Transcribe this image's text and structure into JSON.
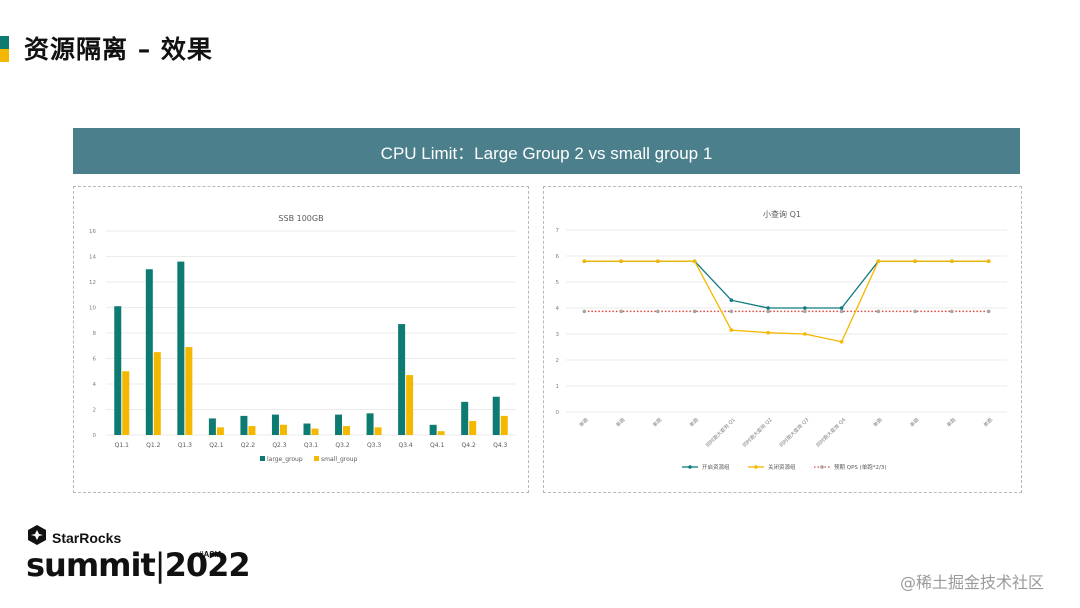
{
  "slide": {
    "title": "资源隔离 – 效果",
    "banner": "CPU Limit：Large Group 2 vs small group 1",
    "brand": "StarRocks",
    "summit_text": "summit",
    "year": "2022",
    "tag": "#ASIA",
    "watermark": "@稀土掘金技术社区",
    "colors": {
      "accent_green": "#0e7b72",
      "accent_yellow": "#f5b800",
      "banner_bg": "#4b7f8c"
    }
  },
  "chart_data": [
    {
      "type": "bar",
      "title": "SSB 100GB",
      "categories": [
        "Q1.1",
        "Q1.2",
        "Q1.3",
        "Q2.1",
        "Q2.2",
        "Q2.3",
        "Q3.1",
        "Q3.2",
        "Q3.3",
        "Q3.4",
        "Q4.1",
        "Q4.2",
        "Q4.3"
      ],
      "series": [
        {
          "name": "large_group",
          "color": "#0e7b72",
          "values": [
            10.1,
            13.0,
            13.6,
            1.3,
            1.5,
            1.6,
            0.9,
            1.6,
            1.7,
            8.7,
            0.8,
            2.6,
            3.0
          ]
        },
        {
          "name": "small_group",
          "color": "#f5b800",
          "values": [
            5.0,
            6.5,
            6.9,
            0.6,
            0.7,
            0.8,
            0.5,
            0.7,
            0.6,
            4.7,
            0.3,
            1.1,
            1.5
          ]
        }
      ],
      "ylim": [
        0,
        16
      ],
      "yticks": [
        0,
        2,
        4,
        6,
        8,
        10,
        12,
        14,
        16
      ],
      "ytick_labels": [
        "0",
        "2",
        "4",
        "6",
        "8",
        "10",
        "12",
        "14",
        "16"
      ],
      "grid": true,
      "legend": "bottom"
    },
    {
      "type": "line",
      "title": "小查询 Q1",
      "categories": [
        "单跑",
        "单跑",
        "单跑",
        "单跑",
        "同时跑大查询 Q1",
        "同时跑大查询 Q2",
        "同时跑大查询 Q3",
        "同时跑大查询 Q4",
        "单跑",
        "单跑",
        "单跑",
        "单跑"
      ],
      "series": [
        {
          "name": "开启资源组",
          "color": "#117a80",
          "dash": "solid",
          "values": [
            5.8,
            5.8,
            5.8,
            5.8,
            4.3,
            4.0,
            4.0,
            4.0,
            5.8,
            5.8,
            5.8,
            5.8
          ]
        },
        {
          "name": "关闭资源组",
          "color": "#f5b800",
          "dash": "solid",
          "values": [
            5.8,
            5.8,
            5.8,
            5.8,
            3.15,
            3.05,
            3.0,
            2.7,
            5.8,
            5.8,
            5.8,
            5.8
          ]
        },
        {
          "name": "预期 QPS (单跑*2/3)",
          "color": "#e0453a",
          "dash": "dotted",
          "values": [
            3.87,
            3.87,
            3.87,
            3.87,
            3.87,
            3.87,
            3.87,
            3.87,
            3.87,
            3.87,
            3.87,
            3.87
          ]
        }
      ],
      "ylim": [
        0,
        7
      ],
      "yticks": [
        0,
        1,
        2,
        3,
        4,
        5,
        6,
        7
      ],
      "ytick_labels": [
        "0",
        "1",
        "2",
        "3",
        "4",
        "5",
        "6",
        "7"
      ],
      "grid": true,
      "legend": "bottom"
    }
  ]
}
